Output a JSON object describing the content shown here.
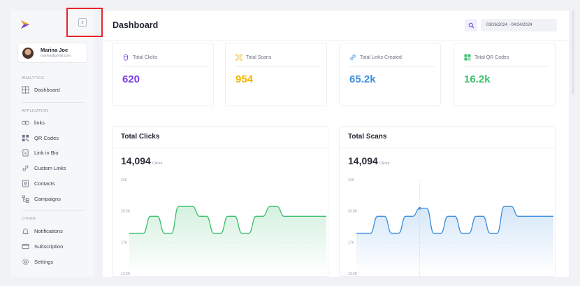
{
  "sidebar": {
    "logo_icon": "arrow-logo",
    "collapse_icon": "chevron-left-icon",
    "profile": {
      "name": "Marina Joe",
      "email": "marina@gmail.com"
    },
    "sections": [
      {
        "label": "ANALYTICS",
        "items": [
          {
            "label": "Dashboard",
            "icon": "grid-icon"
          }
        ]
      },
      {
        "label": "APPLICATION",
        "items": [
          {
            "label": "links",
            "icon": "link-icon"
          },
          {
            "label": "QR Codes",
            "icon": "qr-icon"
          },
          {
            "label": "Link in Bio",
            "icon": "file-icon"
          },
          {
            "label": "Custom Links",
            "icon": "chain-icon"
          },
          {
            "label": "Contacts",
            "icon": "contact-icon"
          },
          {
            "label": "Campaigns",
            "icon": "campaign-icon"
          }
        ]
      },
      {
        "label": "OTHER",
        "items": [
          {
            "label": "Notifications",
            "icon": "bell-icon"
          },
          {
            "label": "Subscription",
            "icon": "card-icon"
          },
          {
            "label": "Settings",
            "icon": "gear-icon"
          }
        ]
      }
    ]
  },
  "header": {
    "title": "Dashboard",
    "search_icon": "search-icon",
    "date_range": "03/26/2024 - 04/24/2024"
  },
  "stats": [
    {
      "label": "Total Clicks",
      "value": "620",
      "color": "#7b3fe4",
      "icon": "mouse-icon"
    },
    {
      "label": "Total Scans",
      "value": "954",
      "color": "#f0b400",
      "icon": "scan-icon"
    },
    {
      "label": "Total Links Created",
      "value": "65.2k",
      "color": "#3d8fe0",
      "icon": "link-icon"
    },
    {
      "label": "Total QR Codes",
      "value": "16.2k",
      "color": "#3ec06f",
      "icon": "qr-icon"
    }
  ],
  "charts": [
    {
      "title": "Total Clicks",
      "total": "14,094",
      "unit": "Clicks",
      "color": "#3ec06f"
    },
    {
      "title": "Total Scans",
      "total": "14,094",
      "unit": "Clicks",
      "color": "#3d8fe0"
    }
  ],
  "chart_data": [
    {
      "type": "area",
      "title": "Total Clicks",
      "y_ticks": [
        "24K",
        "20.5K",
        "17K",
        "13.5K"
      ],
      "ylim": [
        13500,
        24000
      ],
      "x": [
        0,
        1,
        2,
        3,
        4,
        5,
        6,
        7,
        8,
        9,
        10,
        11,
        12,
        13,
        14,
        15,
        16,
        17,
        18,
        19,
        20,
        21,
        22,
        23,
        24,
        25,
        26,
        27,
        28
      ],
      "values": [
        18000,
        18000,
        18000,
        19900,
        19900,
        18000,
        18000,
        21000,
        21000,
        21000,
        19900,
        19900,
        18000,
        18000,
        19900,
        19900,
        18000,
        18000,
        19900,
        19900,
        21000,
        21000,
        19900,
        19900,
        19900,
        19900,
        19900,
        19900,
        19900
      ]
    },
    {
      "type": "area",
      "title": "Total Scans",
      "y_ticks": [
        "24K",
        "20.5K",
        "17K",
        "13.5K"
      ],
      "ylim": [
        13500,
        24000
      ],
      "x": [
        0,
        1,
        2,
        3,
        4,
        5,
        6,
        7,
        8,
        9,
        10,
        11,
        12,
        13,
        14,
        15,
        16,
        17,
        18,
        19,
        20,
        21,
        22,
        23,
        24,
        25,
        26,
        27,
        28
      ],
      "values": [
        18000,
        18000,
        18000,
        19900,
        19900,
        18000,
        18000,
        19900,
        19900,
        20800,
        20800,
        18000,
        18000,
        19900,
        19900,
        18000,
        18000,
        19900,
        19900,
        18000,
        18000,
        21000,
        21000,
        19900,
        19900,
        19900,
        19900,
        19900,
        19900
      ]
    }
  ]
}
